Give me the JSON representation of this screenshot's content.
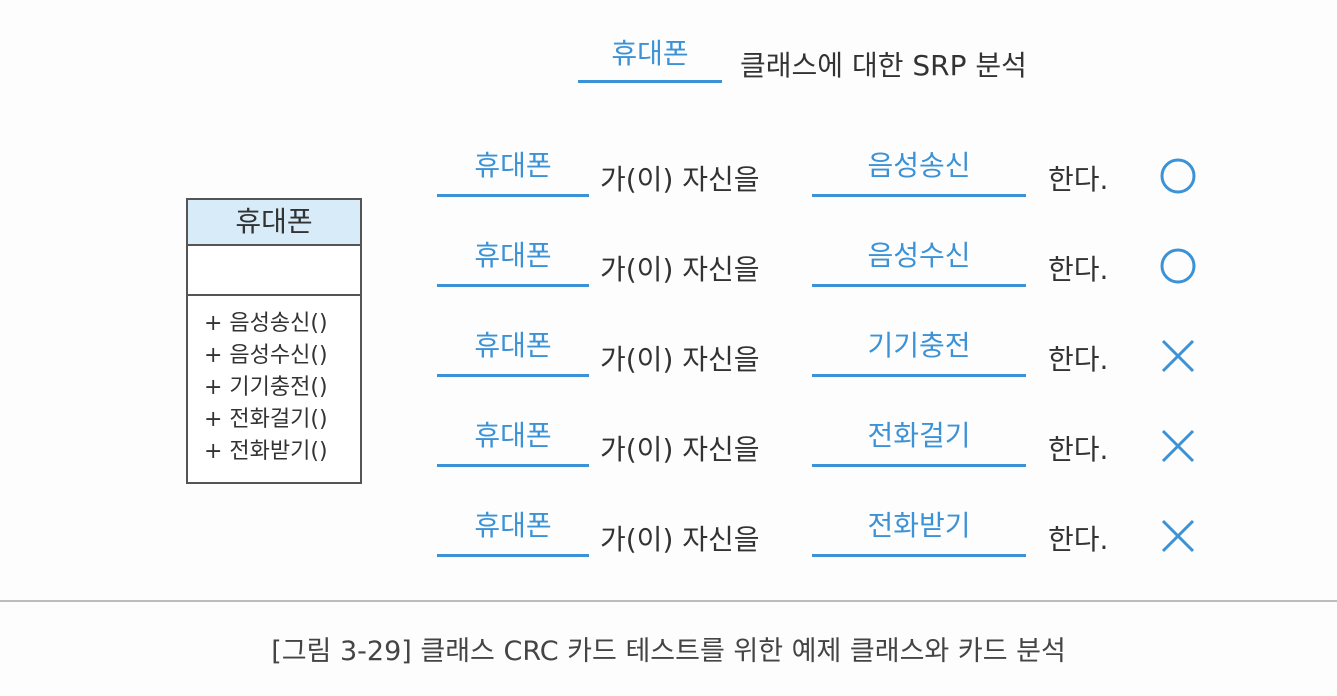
{
  "title": {
    "blank": "휴대폰",
    "rest": "클래스에 대한 SRP 분석"
  },
  "uml_class": {
    "name": "휴대폰",
    "methods": [
      "+ 음성송신()",
      "+ 음성수신()",
      "+ 기기충전()",
      "+ 전화걸기()",
      "+ 전화받기()"
    ]
  },
  "rows": [
    {
      "subject": "휴대폰",
      "middle": "가(이) 자신을",
      "verb": "음성송신",
      "tail": "한다.",
      "result": "O"
    },
    {
      "subject": "휴대폰",
      "middle": "가(이) 자신을",
      "verb": "음성수신",
      "tail": "한다.",
      "result": "O"
    },
    {
      "subject": "휴대폰",
      "middle": "가(이) 자신을",
      "verb": "기기충전",
      "tail": "한다.",
      "result": "X"
    },
    {
      "subject": "휴대폰",
      "middle": "가(이) 자신을",
      "verb": "전화걸기",
      "tail": "한다.",
      "result": "X"
    },
    {
      "subject": "휴대폰",
      "middle": "가(이) 자신을",
      "verb": "전화받기",
      "tail": "한다.",
      "result": "X"
    }
  ],
  "caption": "[그림 3-29] 클래스 CRC 카드 테스트를 위한 예제 클래스와 카드 분석",
  "colors": {
    "accent": "#3b92d6",
    "class_header_fill": "#d7ecf8",
    "text": "#333333"
  },
  "icons": {
    "O": "circle-mark-icon",
    "X": "cross-mark-icon"
  }
}
